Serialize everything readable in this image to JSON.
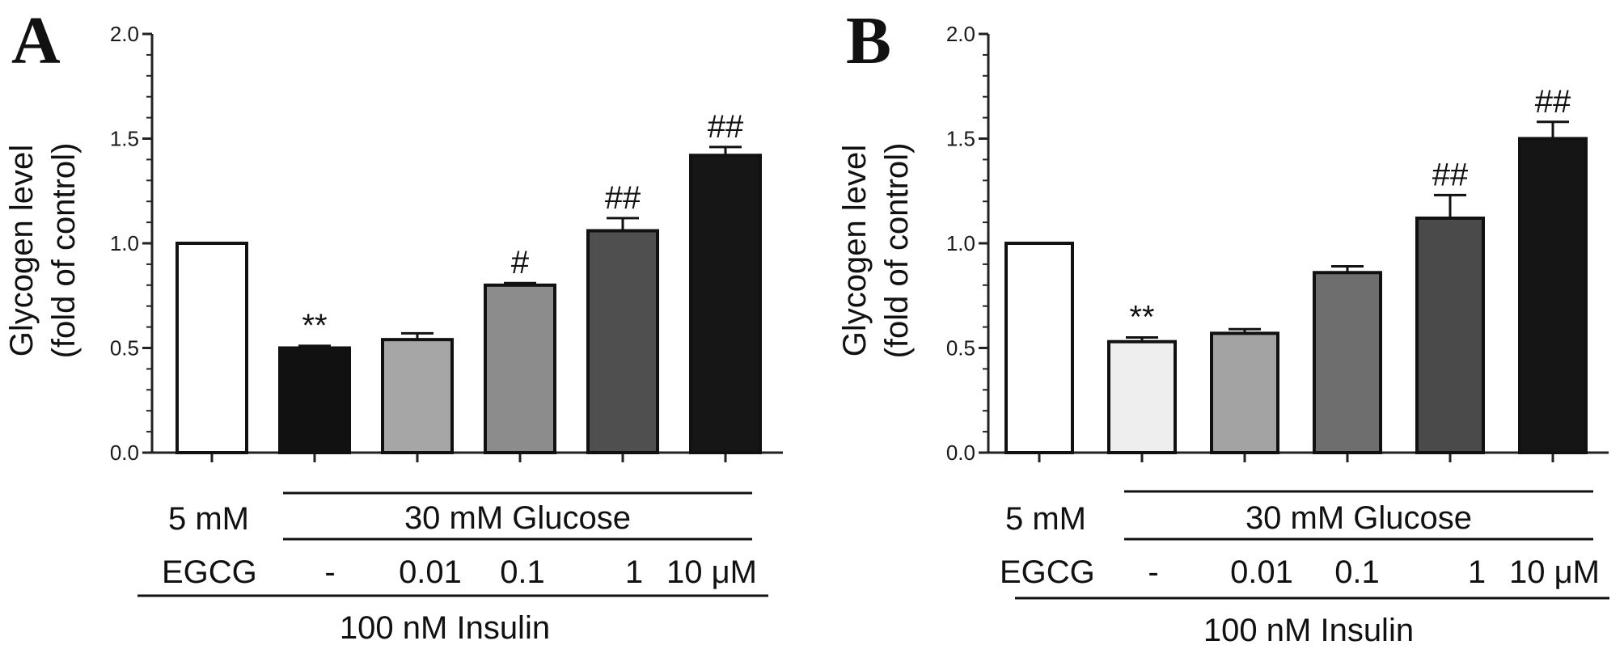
{
  "chart_data": [
    {
      "type": "bar",
      "panel_label": "A",
      "ylabel_line1": "Glycogen level",
      "ylabel_line2": "(fold of control)",
      "ylim": [
        0,
        2.0
      ],
      "yticks": [
        "0.0",
        "0.5",
        "1.0",
        "1.5",
        "2.0"
      ],
      "values": [
        1.0,
        0.5,
        0.54,
        0.8,
        1.06,
        1.42
      ],
      "errors": [
        0,
        0.01,
        0.03,
        0.01,
        0.06,
        0.04
      ],
      "bar_colors": [
        "#ffffff",
        "#111111",
        "#a6a6a6",
        "#8c8c8c",
        "#4f4f4f",
        "#161616"
      ],
      "annotations": [
        "",
        "**",
        "",
        "#",
        "##",
        "##"
      ],
      "conditions": {
        "glucose_low": "5 mM",
        "glucose_high": "30 mM Glucose",
        "egcg_label": "EGCG",
        "egcg_values": [
          "-",
          "0.01",
          "0.1",
          "1",
          "10 μM"
        ],
        "insulin": "100 nM Insulin"
      }
    },
    {
      "type": "bar",
      "panel_label": "B",
      "ylabel_line1": "Glycogen level",
      "ylabel_line2": "(fold of control)",
      "ylim": [
        0,
        2.0
      ],
      "yticks": [
        "0.0",
        "0.5",
        "1.0",
        "1.5",
        "2.0"
      ],
      "values": [
        1.0,
        0.53,
        0.57,
        0.86,
        1.12,
        1.5
      ],
      "errors": [
        0,
        0.02,
        0.02,
        0.03,
        0.11,
        0.08
      ],
      "bar_colors": [
        "#ffffff",
        "#eeeeee",
        "#a3a3a3",
        "#6e6e6e",
        "#4a4a4a",
        "#151515"
      ],
      "annotations": [
        "",
        "**",
        "",
        "",
        "##",
        "##"
      ],
      "conditions": {
        "glucose_low": "5 mM",
        "glucose_high": "30 mM Glucose",
        "egcg_label": "EGCG",
        "egcg_values": [
          "-",
          "0.01",
          "0.1",
          "1",
          "10 μM"
        ],
        "insulin": "100 nM Insulin"
      }
    }
  ]
}
